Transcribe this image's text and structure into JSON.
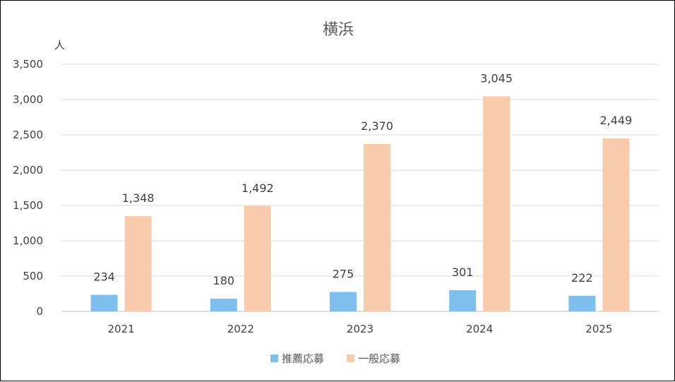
{
  "chart_data": {
    "type": "bar",
    "title": "横浜",
    "ylabel": "人",
    "categories": [
      "2021",
      "2022",
      "2023",
      "2024",
      "2025"
    ],
    "series": [
      {
        "name": "推薦応募",
        "color": "#7fbfee",
        "values": [
          234,
          180,
          275,
          301,
          222
        ]
      },
      {
        "name": "一般応募",
        "color": "#f7cbac",
        "values": [
          1348,
          1492,
          2370,
          3045,
          2449
        ]
      }
    ],
    "ylim": [
      0,
      3500
    ],
    "yticks": [
      0,
      500,
      1000,
      1500,
      2000,
      2500,
      3000,
      3500
    ],
    "ytick_labels": [
      "0",
      "500",
      "1,000",
      "1,500",
      "2,000",
      "2,500",
      "3,000",
      "3,500"
    ],
    "data_labels": [
      [
        "234",
        "180",
        "275",
        "301",
        "222"
      ],
      [
        "1,348",
        "1,492",
        "2,370",
        "3,045",
        "2,449"
      ]
    ],
    "grid": true,
    "legend": "bottom"
  }
}
